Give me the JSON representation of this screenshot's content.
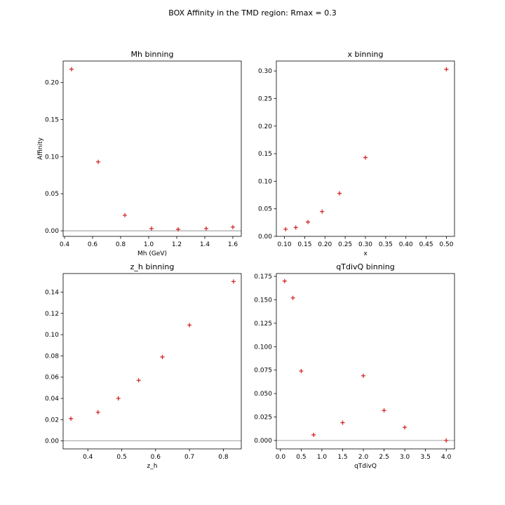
{
  "figure": {
    "title": "BOX Affinity in the TMD region: Rmax = 0.3"
  },
  "chart_data": [
    {
      "type": "scatter",
      "title": "Mh binning",
      "xlabel": "Mh (GeV)",
      "ylabel": "Affinity",
      "xlim": [
        0.39,
        1.66
      ],
      "ylim": [
        -0.0075,
        0.229
      ],
      "xticks": [
        0.4,
        0.6,
        0.8,
        1.0,
        1.2,
        1.4,
        1.6
      ],
      "xtick_labels": [
        "0.4",
        "0.6",
        "0.8",
        "1.0",
        "1.2",
        "1.4",
        "1.6"
      ],
      "yticks": [
        0.0,
        0.05,
        0.1,
        0.15,
        0.2
      ],
      "ytick_labels": [
        "0.00",
        "0.05",
        "0.10",
        "0.15",
        "0.20"
      ],
      "hline": 0,
      "marker": "+",
      "marker_color": "#d62728",
      "x": [
        0.45,
        0.64,
        0.83,
        1.02,
        1.21,
        1.41,
        1.6
      ],
      "y": [
        0.218,
        0.093,
        0.021,
        0.003,
        0.002,
        0.003,
        0.005
      ]
    },
    {
      "type": "scatter",
      "title": "x binning",
      "xlabel": "x",
      "ylabel": "",
      "xlim": [
        0.08,
        0.52
      ],
      "ylim": [
        0.0,
        0.318
      ],
      "xticks": [
        0.1,
        0.15,
        0.2,
        0.25,
        0.3,
        0.35,
        0.4,
        0.45,
        0.5
      ],
      "xtick_labels": [
        "0.10",
        "0.15",
        "0.20",
        "0.25",
        "0.30",
        "0.35",
        "0.40",
        "0.45",
        "0.50"
      ],
      "yticks": [
        0.0,
        0.05,
        0.1,
        0.15,
        0.2,
        0.25,
        0.3
      ],
      "ytick_labels": [
        "0.00",
        "0.05",
        "0.10",
        "0.15",
        "0.20",
        "0.25",
        "0.30"
      ],
      "hline": null,
      "marker": "+",
      "marker_color": "#d62728",
      "x": [
        0.103,
        0.128,
        0.158,
        0.193,
        0.236,
        0.3,
        0.5
      ],
      "y": [
        0.013,
        0.016,
        0.026,
        0.045,
        0.078,
        0.143,
        0.303
      ]
    },
    {
      "type": "scatter",
      "title": "z_h binning",
      "xlabel": "z_h",
      "ylabel": "",
      "xlim": [
        0.327,
        0.853
      ],
      "ylim": [
        -0.0075,
        0.1575
      ],
      "xticks": [
        0.4,
        0.5,
        0.6,
        0.7,
        0.8
      ],
      "xtick_labels": [
        "0.4",
        "0.5",
        "0.6",
        "0.7",
        "0.8"
      ],
      "yticks": [
        0.0,
        0.02,
        0.04,
        0.06,
        0.08,
        0.1,
        0.12,
        0.14
      ],
      "ytick_labels": [
        "0.00",
        "0.02",
        "0.04",
        "0.06",
        "0.08",
        "0.10",
        "0.12",
        "0.14"
      ],
      "hline": 0,
      "marker": "+",
      "marker_color": "#d62728",
      "x": [
        0.35,
        0.43,
        0.49,
        0.55,
        0.62,
        0.7,
        0.83
      ],
      "y": [
        0.021,
        0.027,
        0.04,
        0.057,
        0.079,
        0.109,
        0.15
      ]
    },
    {
      "type": "scatter",
      "title": "qTdivQ binning",
      "xlabel": "qTdivQ",
      "ylabel": "",
      "xlim": [
        -0.1,
        4.2
      ],
      "ylim": [
        -0.009,
        0.178
      ],
      "xticks": [
        0.0,
        0.5,
        1.0,
        1.5,
        2.0,
        2.5,
        3.0,
        3.5,
        4.0
      ],
      "xtick_labels": [
        "0.0",
        "0.5",
        "1.0",
        "1.5",
        "2.0",
        "2.5",
        "3.0",
        "3.5",
        "4.0"
      ],
      "yticks": [
        0.0,
        0.025,
        0.05,
        0.075,
        0.1,
        0.125,
        0.15,
        0.175
      ],
      "ytick_labels": [
        "0.000",
        "0.025",
        "0.050",
        "0.075",
        "0.100",
        "0.125",
        "0.150",
        "0.175"
      ],
      "hline": 0,
      "marker": "+",
      "marker_color": "#d62728",
      "x": [
        0.1,
        0.3,
        0.5,
        0.8,
        1.5,
        2.0,
        2.5,
        3.0,
        4.0
      ],
      "y": [
        0.17,
        0.152,
        0.074,
        0.006,
        0.019,
        0.069,
        0.032,
        0.014,
        0.0
      ]
    }
  ]
}
